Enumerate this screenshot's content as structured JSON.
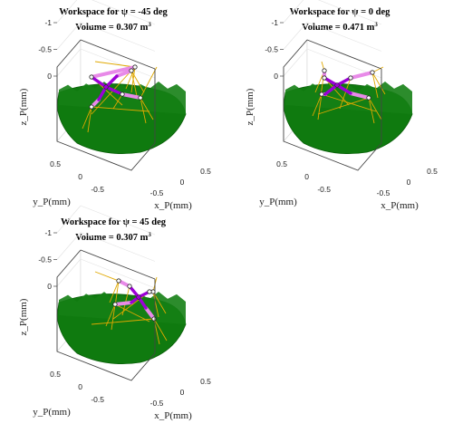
{
  "chart_data": [
    {
      "type": "3d-surface",
      "title": "Workspace for  ψ = -45 deg",
      "volume_label": "Volume =  0.307 m",
      "volume_unit_exp": "3",
      "xlabel": "x_P(mm)",
      "ylabel": "y_P(mm)",
      "zlabel": "z_P(mm)",
      "xticks": [
        "-0.5",
        "0",
        "0.5"
      ],
      "yticks": [
        "0.5",
        "0",
        "-0.5"
      ],
      "zticks": [
        "0",
        "-0.5",
        "-1"
      ],
      "psi_deg": -45,
      "volume_m3": 0.307,
      "colors": {
        "workspace": "#0f7a0f",
        "cables": "#e0a800",
        "platform": "#e88ae8",
        "cross": "#9b00d6"
      }
    },
    {
      "type": "3d-surface",
      "title": "Workspace for  ψ = 0 deg",
      "volume_label": "Volume =  0.471 m",
      "volume_unit_exp": "3",
      "xlabel": "x_P(mm)",
      "ylabel": "y_P(mm)",
      "zlabel": "z_P(mm)",
      "xticks": [
        "-0.5",
        "0",
        "0.5"
      ],
      "yticks": [
        "0.5",
        "0",
        "-0.5"
      ],
      "zticks": [
        "0",
        "-0.5",
        "-1"
      ],
      "psi_deg": 0,
      "volume_m3": 0.471,
      "colors": {
        "workspace": "#0f7a0f",
        "cables": "#e0a800",
        "platform": "#e88ae8",
        "cross": "#9b00d6"
      }
    },
    {
      "type": "3d-surface",
      "title": "Workspace for  ψ = 45 deg",
      "volume_label": "Volume =  0.307 m",
      "volume_unit_exp": "3",
      "xlabel": "x_P(mm)",
      "ylabel": "y_P(mm)",
      "zlabel": "z_P(mm)",
      "xticks": [
        "-0.5",
        "0",
        "0.5"
      ],
      "yticks": [
        "0.5",
        "0",
        "-0.5"
      ],
      "zticks": [
        "0",
        "-0.5",
        "-1"
      ],
      "psi_deg": 45,
      "volume_m3": 0.307,
      "colors": {
        "workspace": "#0f7a0f",
        "cables": "#e0a800",
        "platform": "#e88ae8",
        "cross": "#9b00d6"
      }
    }
  ]
}
